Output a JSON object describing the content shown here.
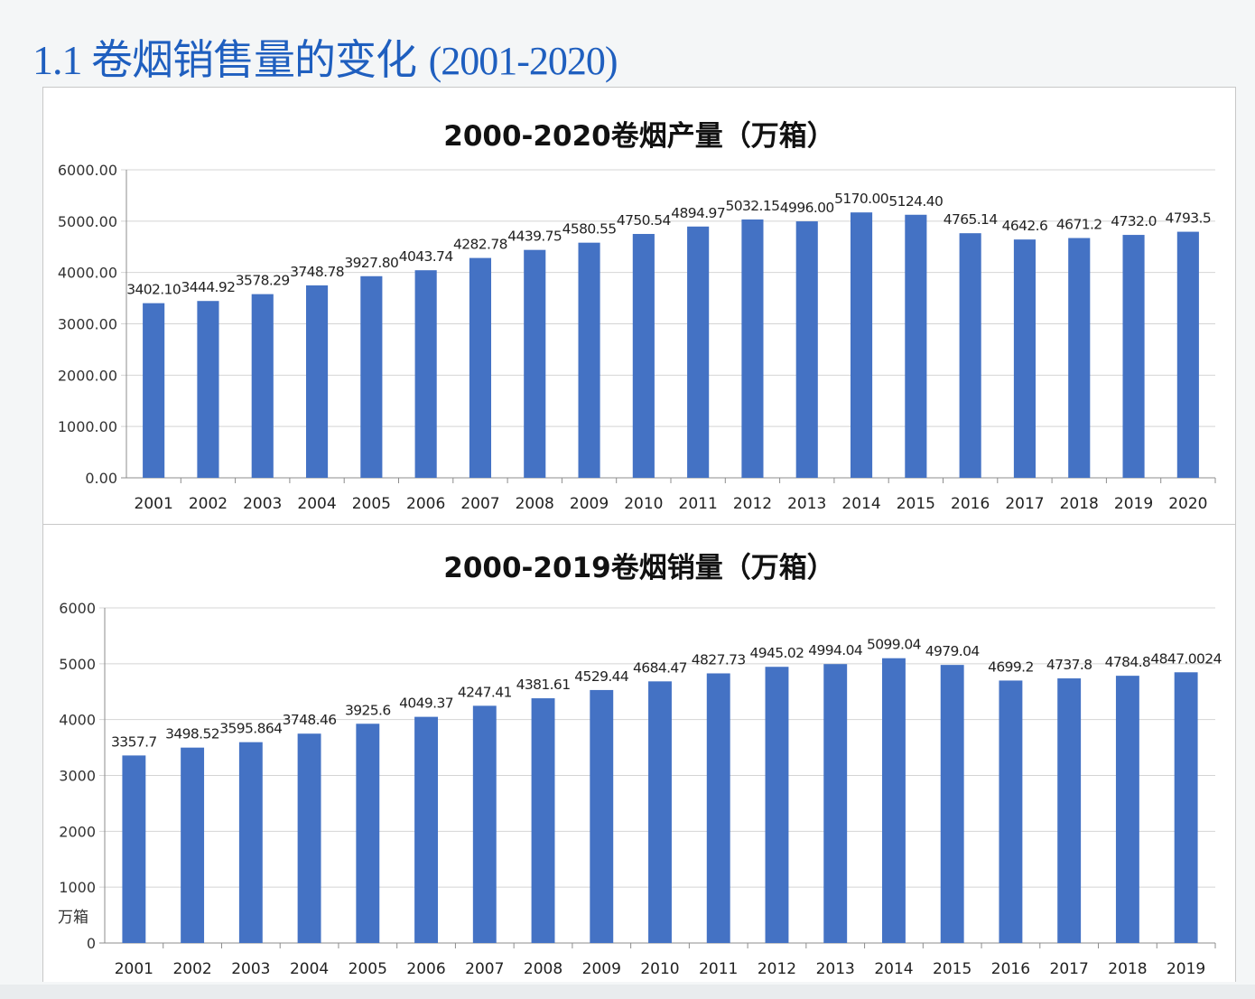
{
  "page": {
    "title_main": "1.1 卷烟销售量的变化",
    "title_years": "(2001-2020)"
  },
  "chart_data": [
    {
      "type": "bar",
      "title": "2000-2020卷烟产量（万箱）",
      "categories": [
        "2001",
        "2002",
        "2003",
        "2004",
        "2005",
        "2006",
        "2007",
        "2008",
        "2009",
        "2010",
        "2011",
        "2012",
        "2013",
        "2014",
        "2015",
        "2016",
        "2017",
        "2018",
        "2019",
        "2020"
      ],
      "values": [
        3402.1,
        3444.92,
        3578.29,
        3748.78,
        3927.8,
        4043.74,
        4282.78,
        4439.75,
        4580.55,
        4750.54,
        4894.97,
        5032.15,
        4996.0,
        5170.0,
        5124.4,
        4765.14,
        4642.6,
        4671.2,
        4732.0,
        4793.5
      ],
      "data_labels": [
        "3402.10",
        "3444.92",
        "3578.29",
        "3748.78",
        "3927.80",
        "4043.74",
        "4282.78",
        "4439.75",
        "4580.55",
        "4750.54",
        "4894.97",
        "5032.15",
        "4996.00",
        "5170.00",
        "5124.40",
        "4765.14",
        "4642.6",
        "4671.2",
        "4732.0",
        "4793.5"
      ],
      "ylim": [
        0,
        6000
      ],
      "yticks": [
        "0.00",
        "1000.00",
        "2000.00",
        "3000.00",
        "4000.00",
        "5000.00",
        "6000.00"
      ],
      "ylabel": "",
      "xlabel": "",
      "grid": true,
      "color": "#4472c4"
    },
    {
      "type": "bar",
      "title": "2000-2019卷烟销量（万箱）",
      "categories": [
        "2001",
        "2002",
        "2003",
        "2004",
        "2005",
        "2006",
        "2007",
        "2008",
        "2009",
        "2010",
        "2011",
        "2012",
        "2013",
        "2014",
        "2015",
        "2016",
        "2017",
        "2018",
        "2019"
      ],
      "values": [
        3357.7,
        3498.52,
        3595.864,
        3748.46,
        3925.6,
        4049.37,
        4247.41,
        4381.61,
        4529.44,
        4684.47,
        4827.73,
        4945.02,
        4994.04,
        5099.04,
        4979.04,
        4699.2,
        4737.8,
        4784.8,
        4847.0024
      ],
      "data_labels": [
        "3357.7",
        "3498.52",
        "3595.864",
        "3748.46",
        "3925.6",
        "4049.37",
        "4247.41",
        "4381.61",
        "4529.44",
        "4684.47",
        "4827.73",
        "4945.02",
        "4994.04",
        "5099.04",
        "4979.04",
        "4699.2",
        "4737.8",
        "4784.8",
        "4847.0024"
      ],
      "ylim": [
        0,
        6000
      ],
      "yticks": [
        "0",
        "1000",
        "2000",
        "3000",
        "4000",
        "5000",
        "6000"
      ],
      "ylabel": "万箱",
      "xlabel": "",
      "grid": true,
      "color": "#4472c4"
    }
  ]
}
